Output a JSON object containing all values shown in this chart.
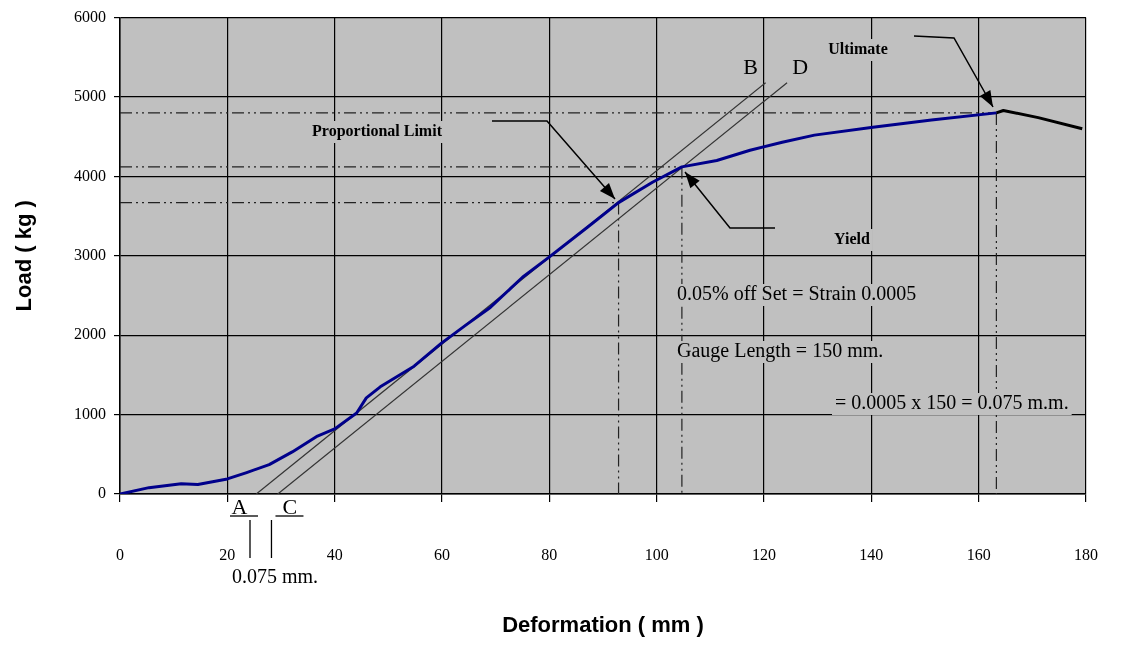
{
  "chart_data": {
    "type": "line",
    "xlabel": "Deformation ( mm )",
    "ylabel": "Load ( kg )",
    "xlim": [
      0,
      180
    ],
    "xticks": [
      0,
      20,
      40,
      60,
      80,
      100,
      120,
      140,
      160,
      180
    ],
    "ylim": [
      0,
      6000
    ],
    "yticks": [
      0,
      1000,
      2000,
      3000,
      4000,
      5000,
      6000
    ],
    "grid": true,
    "legend": false,
    "marker": "none",
    "line_style": "solid",
    "series": [
      {
        "color": "#00008b",
        "x": [
          0,
          5.4,
          11.4,
          14.5,
          20,
          23.6,
          27.8,
          32.1,
          36.8,
          40,
          44.1,
          45.9,
          48.5,
          54.8,
          59.9,
          64.5,
          69,
          75,
          79.9,
          87.1,
          92.9,
          99.3,
          104.7,
          111.2,
          117.4,
          123.4,
          129.4,
          140.3,
          151.2,
          163.3
        ],
        "values": [
          0,
          80,
          130,
          120,
          190,
          270,
          370,
          530,
          730,
          820,
          1020,
          1210,
          1350,
          1610,
          1900,
          2130,
          2350,
          2730,
          2980,
          3360,
          3670,
          3930,
          4120,
          4200,
          4330,
          4430,
          4520,
          4620,
          4710,
          4800
        ]
      },
      {
        "color": "#000000",
        "x": [
          163.3,
          164.6,
          171.1,
          179.3
        ],
        "values": [
          4800,
          4830,
          4740,
          4600
        ]
      },
      {
        "color": "#333333",
        "x": [
          25.4,
          120.3
        ],
        "values": [
          0,
          5180
        ]
      },
      {
        "color": "#333333",
        "x": [
          29.4,
          124.3
        ],
        "values": [
          0,
          5180
        ]
      },
      {
        "color": "#222222",
        "line_style": "dashed",
        "x": [
          0,
          163.3
        ],
        "values": [
          4800,
          4800
        ]
      },
      {
        "color": "#222222",
        "line_style": "dashed",
        "x": [
          0,
          104.7
        ],
        "values": [
          4120,
          4120
        ]
      },
      {
        "color": "#222222",
        "line_style": "dashed",
        "x": [
          0,
          92.9
        ],
        "values": [
          3670,
          3670
        ]
      },
      {
        "color": "#222222",
        "line_style": "dashed",
        "x": [
          92.9,
          92.9
        ],
        "values": [
          3670,
          0
        ]
      },
      {
        "color": "#222222",
        "line_style": "dashed",
        "x": [
          104.7,
          104.7
        ],
        "values": [
          4120,
          0
        ]
      },
      {
        "color": "#222222",
        "line_style": "dashed",
        "x": [
          163.3,
          163.3
        ],
        "values": [
          4800,
          0
        ]
      }
    ],
    "annotations": [
      "Proportional Limit",
      "Yield",
      "Ultimate",
      {
        "text": "A",
        "x": 25.4,
        "y": 0
      },
      {
        "text": "B",
        "x": 120.3,
        "y": 5180
      },
      {
        "text": "C",
        "x": 29.4,
        "y": 0
      },
      {
        "text": "D",
        "x": 124.3,
        "y": 5180
      },
      "0.05% off Set = Strain 0.0005",
      "Gauge Length = 150 mm.",
      "= 0.0005 x 150 = 0.075 m.m.",
      "0.075 mm."
    ]
  }
}
